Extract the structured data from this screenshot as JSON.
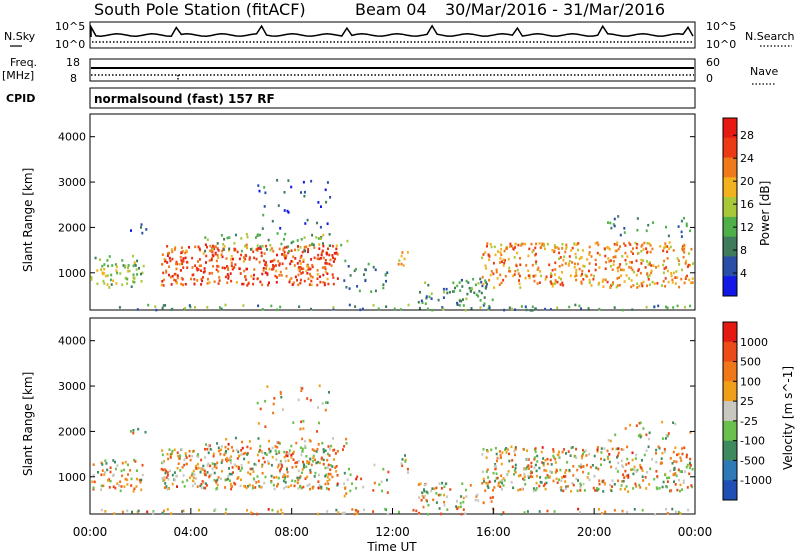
{
  "header": {
    "station": "South Pole Station (fitACF)",
    "beam": "Beam 04",
    "date_range": "30/Mar/2016 - 31/Mar/2016"
  },
  "summary_panels": {
    "nsky_label": "N.Sky",
    "nsky_ticks": [
      "10^5",
      "10^0"
    ],
    "nsearch_label": "N.Search",
    "nsearch_ticks": [
      "10^5",
      "10^0"
    ],
    "freq_label": "Freq.",
    "freq_unit": "[MHz]",
    "freq_ticks": [
      "18",
      "8"
    ],
    "nave_label": "Nave",
    "nave_ticks": [
      "60",
      "0"
    ],
    "cpid_label": "CPID",
    "cpid_value": "normalsound (fast) 157 RF"
  },
  "time_axis": {
    "label": "Time UT",
    "ticks": [
      "00:00",
      "04:00",
      "08:00",
      "12:00",
      "16:00",
      "20:00",
      "00:00"
    ]
  },
  "chart_data": [
    {
      "type": "heatmap",
      "panel": "power",
      "ylabel": "Slant Range [km]",
      "yticks": [
        1000,
        2000,
        3000,
        4000
      ],
      "ylim": [
        180,
        4500
      ],
      "xlim_hours": [
        0,
        24
      ],
      "xlabel": "Time UT",
      "colorbar": {
        "label": "Power [dB]",
        "ticks": [
          4,
          8,
          12,
          16,
          20,
          24,
          28
        ],
        "range": [
          0,
          31
        ],
        "colors": [
          "#1418e6",
          "#2a4ea8",
          "#3e7a5c",
          "#4fb04a",
          "#a8c83a",
          "#f2b21e",
          "#f07a1a",
          "#ec3a14",
          "#e61a12"
        ]
      }
    },
    {
      "type": "heatmap",
      "panel": "velocity",
      "ylabel": "Slant Range [km]",
      "yticks": [
        1000,
        2000,
        3000,
        4000
      ],
      "ylim": [
        180,
        4500
      ],
      "xlim_hours": [
        0,
        24
      ],
      "xlabel": "Time UT",
      "colorbar": {
        "label": "Velocity [m s^-1]",
        "ticks": [
          "1000",
          "500",
          "100",
          "25",
          "-25",
          "-100",
          "-500",
          "-1000"
        ],
        "colors": [
          "#1f4fb4",
          "#2e7ab8",
          "#3c8a5e",
          "#6ac04a",
          "#c8c8c0",
          "#f0a018",
          "#f07818",
          "#ec4a16",
          "#e41a12"
        ]
      }
    }
  ]
}
